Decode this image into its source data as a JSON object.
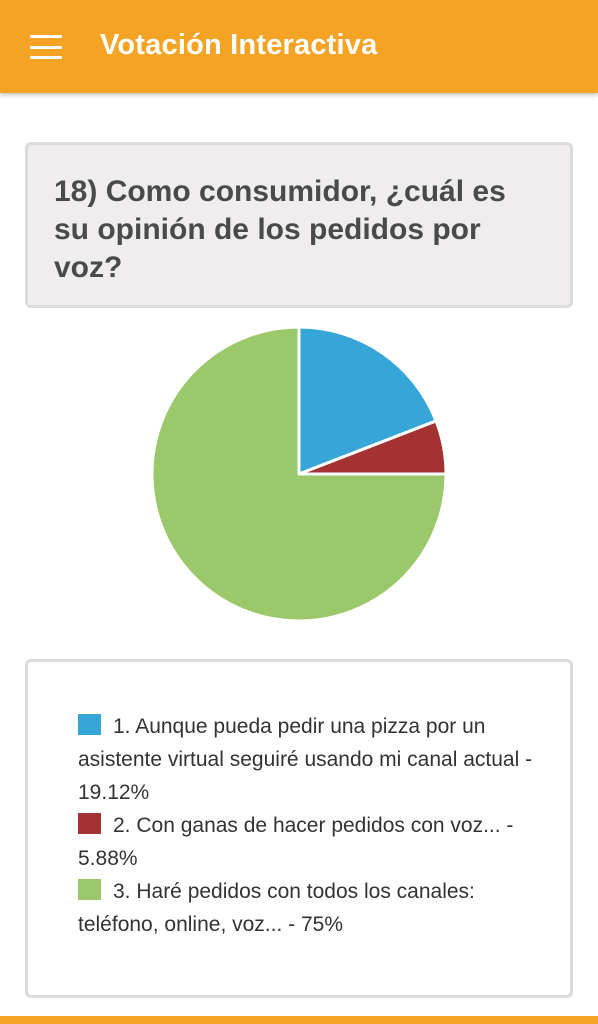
{
  "appbar": {
    "title": "Votación Interactiva",
    "menu_icon": "hamburger-menu-icon",
    "color": "#f5a324"
  },
  "question": {
    "text": "18) Como consumidor, ¿cuál es su opinión de los pedidos por voz?"
  },
  "chart_data": {
    "type": "pie",
    "slices": [
      {
        "label": "1. Aunque pueda pedir una pizza por un asistente virtual seguiré usando mi canal actual - 19.12%",
        "value": 19.12,
        "color": "#36a5d8"
      },
      {
        "label": "2. Con ganas de hacer pedidos con voz... - 5.88%",
        "value": 5.88,
        "color": "#a53232"
      },
      {
        "label": "3. Haré pedidos con todos los canales: teléfono, online, voz... - 75%",
        "value": 75,
        "color": "#9bc86a"
      }
    ]
  }
}
